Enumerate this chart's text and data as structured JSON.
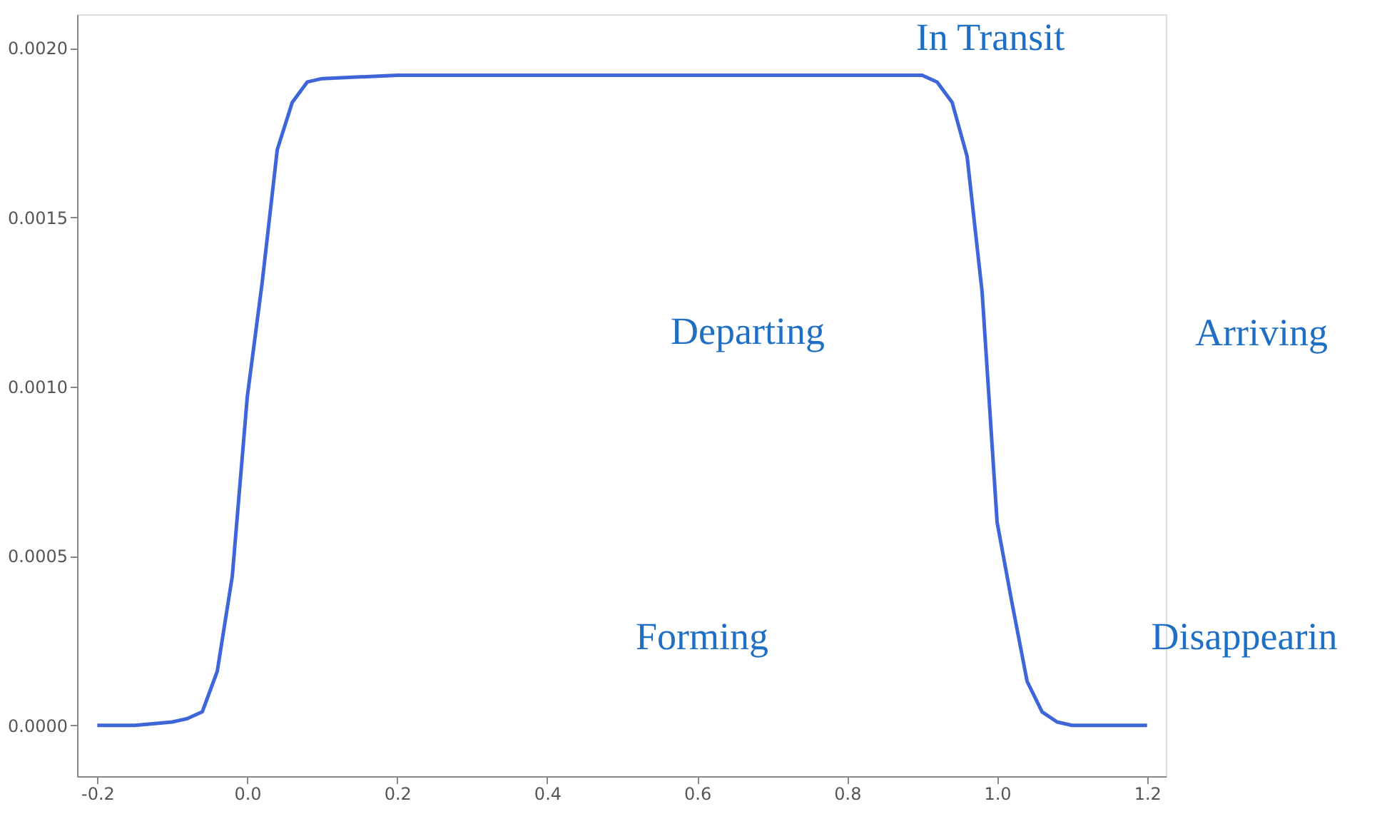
{
  "chart_data": {
    "type": "line",
    "series": [
      {
        "color": "#3f66d8",
        "x": [
          -0.2,
          -0.15,
          -0.1,
          -0.08,
          -0.06,
          -0.04,
          -0.02,
          0.0,
          0.02,
          0.04,
          0.06,
          0.08,
          0.1,
          0.15,
          0.2,
          0.3,
          0.4,
          0.5,
          0.6,
          0.7,
          0.8,
          0.85,
          0.9,
          0.92,
          0.94,
          0.96,
          0.98,
          1.0,
          1.02,
          1.04,
          1.06,
          1.08,
          1.1,
          1.15,
          1.2
        ],
        "values": [
          0.0,
          0.0,
          1e-05,
          2e-05,
          4e-05,
          0.00016,
          0.00044,
          0.00097,
          0.00131,
          0.0017,
          0.00184,
          0.0019,
          0.00191,
          0.001915,
          0.00192,
          0.00192,
          0.00192,
          0.00192,
          0.00192,
          0.00192,
          0.00192,
          0.00192,
          0.00192,
          0.0019,
          0.00184,
          0.00168,
          0.00128,
          0.0006,
          0.00036,
          0.00013,
          4e-05,
          1e-05,
          0.0,
          0.0,
          0.0
        ]
      }
    ],
    "xlim": [
      -0.227,
      1.225
    ],
    "ylim": [
      -0.00015,
      0.0021
    ],
    "xticks": [
      {
        "value": -0.2,
        "label": "-0.2"
      },
      {
        "value": 0.0,
        "label": "0.0"
      },
      {
        "value": 0.2,
        "label": "0.2"
      },
      {
        "value": 0.4,
        "label": "0.4"
      },
      {
        "value": 0.6,
        "label": "0.6"
      },
      {
        "value": 0.8,
        "label": "0.8"
      },
      {
        "value": 1.0,
        "label": "1.0"
      },
      {
        "value": 1.2,
        "label": "1.2"
      }
    ],
    "yticks": [
      {
        "value": 0.0,
        "label": "0.0000"
      },
      {
        "value": 0.0005,
        "label": "0.0005"
      },
      {
        "value": 0.001,
        "label": "0.0010"
      },
      {
        "value": 0.0015,
        "label": "0.0015"
      },
      {
        "value": 0.002,
        "label": "0.0020"
      }
    ],
    "grid": false,
    "line_style": "solid",
    "marker": "none",
    "annotations": [
      "In Transit",
      "Departing",
      "Arriving",
      "Forming",
      "Disappearin"
    ]
  }
}
